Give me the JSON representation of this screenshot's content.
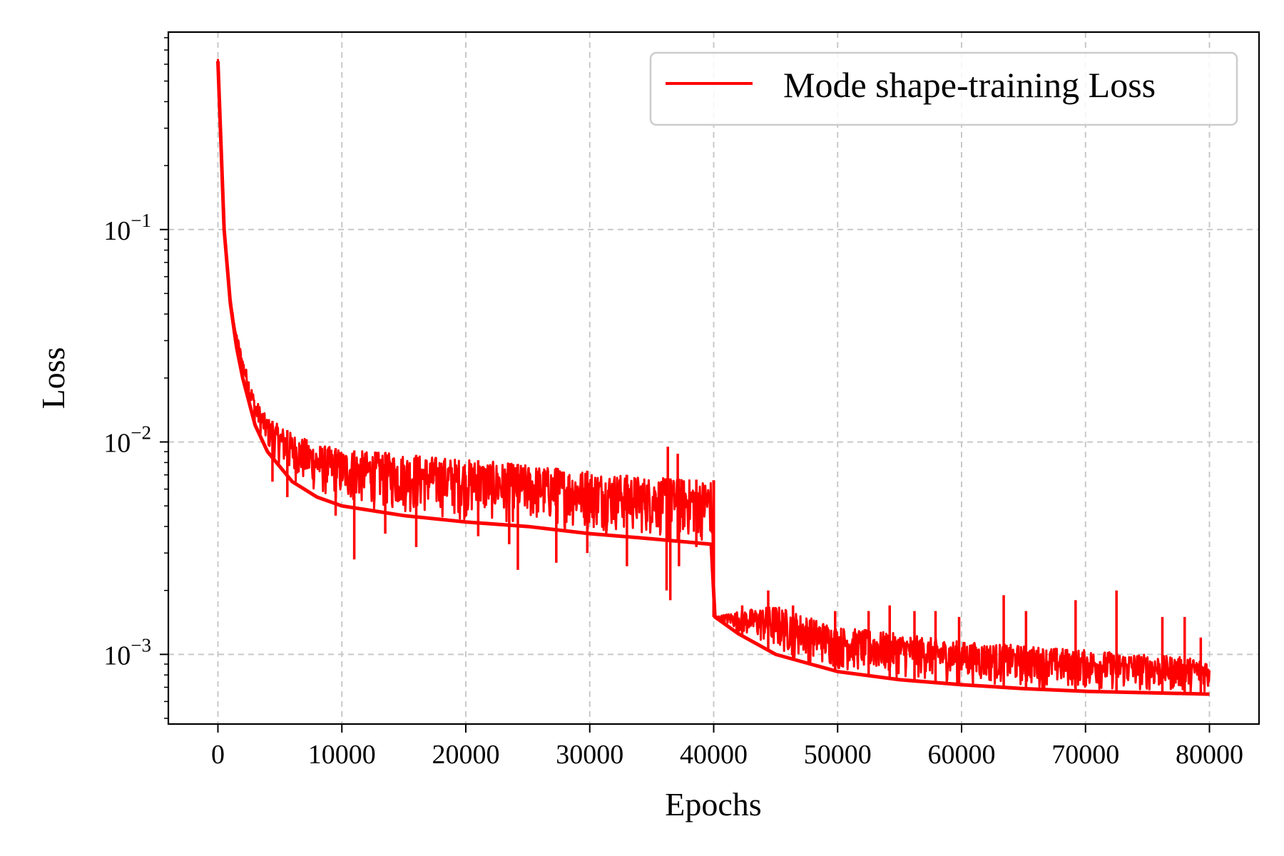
{
  "chart_data": {
    "type": "line",
    "xlabel": "Epochs",
    "ylabel": "Loss",
    "yscale": "log",
    "xlim": [
      -4000,
      84000
    ],
    "ylim": [
      0.00047,
      0.85
    ],
    "grid": true,
    "legend_position": "top-right",
    "x_ticks": [
      0,
      10000,
      20000,
      30000,
      40000,
      50000,
      60000,
      70000,
      80000
    ],
    "y_ticks": [
      {
        "value": 0.1,
        "base": "10",
        "exp": "−1"
      },
      {
        "value": 0.01,
        "base": "10",
        "exp": "−2"
      },
      {
        "value": 0.001,
        "base": "10",
        "exp": "−3"
      }
    ],
    "series": [
      {
        "name": "Mode shape-training Loss",
        "color": "#ff0000",
        "lower": [
          [
            0,
            0.62
          ],
          [
            500,
            0.1
          ],
          [
            1000,
            0.045
          ],
          [
            1500,
            0.028
          ],
          [
            2000,
            0.02
          ],
          [
            3000,
            0.012
          ],
          [
            4000,
            0.009
          ],
          [
            6000,
            0.0065
          ],
          [
            8000,
            0.0055
          ],
          [
            10000,
            0.005
          ],
          [
            15000,
            0.0045
          ],
          [
            20000,
            0.0042
          ],
          [
            25000,
            0.004
          ],
          [
            30000,
            0.0037
          ],
          [
            35000,
            0.0035
          ],
          [
            39800,
            0.0033
          ],
          [
            40100,
            0.0015
          ],
          [
            42000,
            0.00125
          ],
          [
            45000,
            0.001
          ],
          [
            50000,
            0.00083
          ],
          [
            55000,
            0.00076
          ],
          [
            60000,
            0.00072
          ],
          [
            65000,
            0.00069
          ],
          [
            70000,
            0.00067
          ],
          [
            75000,
            0.00066
          ],
          [
            80000,
            0.00065
          ]
        ],
        "upper": [
          [
            0,
            0.65
          ],
          [
            500,
            0.11
          ],
          [
            1000,
            0.05
          ],
          [
            1500,
            0.033
          ],
          [
            2000,
            0.025
          ],
          [
            3000,
            0.016
          ],
          [
            4000,
            0.013
          ],
          [
            6000,
            0.011
          ],
          [
            8000,
            0.0098
          ],
          [
            10000,
            0.0092
          ],
          [
            15000,
            0.0088
          ],
          [
            20000,
            0.0083
          ],
          [
            25000,
            0.0078
          ],
          [
            30000,
            0.0073
          ],
          [
            35000,
            0.0068
          ],
          [
            39800,
            0.0066
          ],
          [
            40100,
            0.0015
          ],
          [
            42000,
            0.0016
          ],
          [
            45000,
            0.0017
          ],
          [
            50000,
            0.00135
          ],
          [
            55000,
            0.00125
          ],
          [
            60000,
            0.00115
          ],
          [
            65000,
            0.0011
          ],
          [
            70000,
            0.00105
          ],
          [
            75000,
            0.001
          ],
          [
            80000,
            0.00095
          ]
        ],
        "dips": [
          [
            4400,
            0.0065
          ],
          [
            5600,
            0.0055
          ],
          [
            9500,
            0.0045
          ],
          [
            11000,
            0.0028
          ],
          [
            13500,
            0.0037
          ],
          [
            16000,
            0.0032
          ],
          [
            21000,
            0.0036
          ],
          [
            23500,
            0.0033
          ],
          [
            24200,
            0.0025
          ],
          [
            27300,
            0.0027
          ],
          [
            29800,
            0.003
          ],
          [
            33000,
            0.0026
          ],
          [
            36200,
            0.002
          ],
          [
            36500,
            0.0018
          ],
          [
            37200,
            0.0026
          ],
          [
            38600,
            0.0032
          ]
        ],
        "spikes": [
          [
            36300,
            0.0095
          ],
          [
            37100,
            0.0088
          ],
          [
            42300,
            0.0017
          ],
          [
            44400,
            0.002
          ],
          [
            46400,
            0.0017
          ],
          [
            49800,
            0.0016
          ],
          [
            52500,
            0.0016
          ],
          [
            54200,
            0.0017
          ],
          [
            56200,
            0.0016
          ],
          [
            57900,
            0.0016
          ],
          [
            59800,
            0.0015
          ],
          [
            63400,
            0.0019
          ],
          [
            65200,
            0.0016
          ],
          [
            69200,
            0.0018
          ],
          [
            72500,
            0.002
          ],
          [
            76200,
            0.0015
          ],
          [
            78000,
            0.0015
          ],
          [
            79300,
            0.0012
          ]
        ]
      }
    ]
  }
}
